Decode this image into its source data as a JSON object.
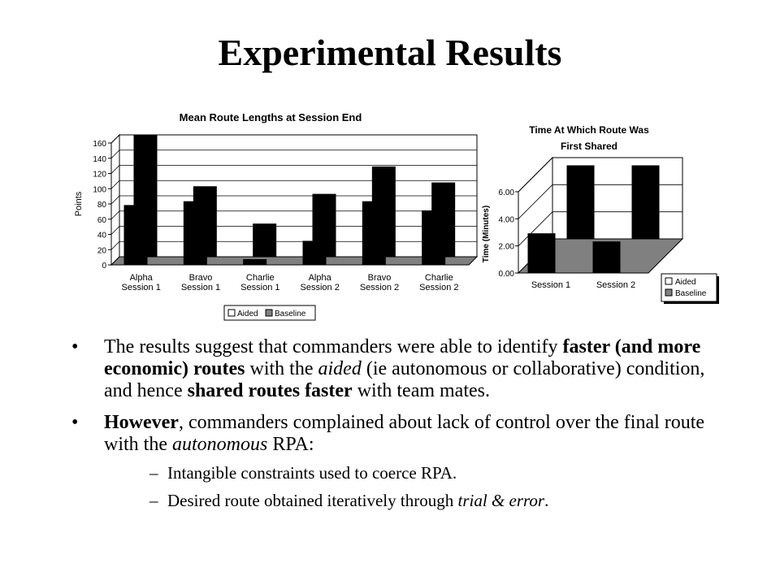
{
  "slide": {
    "title": "Experimental Results"
  },
  "chart_data": [
    {
      "type": "bar",
      "title": "Mean Route Lengths at Session End",
      "xlabel": "",
      "ylabel": "Points",
      "ylim": [
        0,
        160
      ],
      "yticks": [
        0,
        20,
        40,
        60,
        80,
        100,
        120,
        140,
        160
      ],
      "categories": [
        [
          "Alpha",
          "Session 1"
        ],
        [
          "Bravo",
          "Session 1"
        ],
        [
          "Charlie",
          "Session 1"
        ],
        [
          "Alpha",
          "Session 2"
        ],
        [
          "Bravo",
          "Session 2"
        ],
        [
          "Charlie",
          "Session 2"
        ]
      ],
      "series": [
        {
          "name": "Aided",
          "color": "#ffffff",
          "values": [
            78,
            83,
            7,
            31,
            83,
            71
          ]
        },
        {
          "name": "Baseline",
          "color": "#808080",
          "values": [
            160,
            92,
            43,
            82,
            118,
            97
          ]
        }
      ],
      "grid": true,
      "legend_position": "bottom"
    },
    {
      "type": "bar",
      "title": "Time At Which Route Was First Shared",
      "xlabel": "",
      "ylabel": "Time (Minutes)",
      "ylim": [
        0,
        6
      ],
      "yticks": [
        "0.00",
        "2.00",
        "4.00",
        "6.00"
      ],
      "categories": [
        "Session 1",
        "Session 2"
      ],
      "series": [
        {
          "name": "Aided",
          "color": "#ffffff",
          "values": [
            2.9,
            2.3
          ]
        },
        {
          "name": "Baseline",
          "color": "#808080",
          "values": [
            5.4,
            5.4
          ]
        }
      ],
      "grid": true,
      "legend_position": "right"
    }
  ],
  "bullets": [
    {
      "parts": [
        {
          "t": "The results suggest that commanders were able to identify ",
          "s": "n"
        },
        {
          "t": "faster (and more economic) routes",
          "s": "b"
        },
        {
          "t": " with the ",
          "s": "n"
        },
        {
          "t": "aided",
          "s": "i"
        },
        {
          "t": " (ie autonomous or collaborative) condition, and hence ",
          "s": "n"
        },
        {
          "t": "shared routes faster",
          "s": "b"
        },
        {
          "t": " with team mates.",
          "s": "n"
        }
      ]
    },
    {
      "parts": [
        {
          "t": "However",
          "s": "b"
        },
        {
          "t": ", commanders complained about lack of control over the final route with the ",
          "s": "n"
        },
        {
          "t": "autonomous",
          "s": "i"
        },
        {
          "t": " RPA:",
          "s": "n"
        }
      ]
    }
  ],
  "subbullets": [
    {
      "parts": [
        {
          "t": "Intangible constraints used to coerce RPA.",
          "s": "n"
        }
      ]
    },
    {
      "parts": [
        {
          "t": "Desired route obtained iteratively through ",
          "s": "n"
        },
        {
          "t": "trial & error",
          "s": "i"
        },
        {
          "t": ".",
          "s": "n"
        }
      ]
    }
  ],
  "markers": {
    "bullet": "•",
    "dash": "–"
  }
}
